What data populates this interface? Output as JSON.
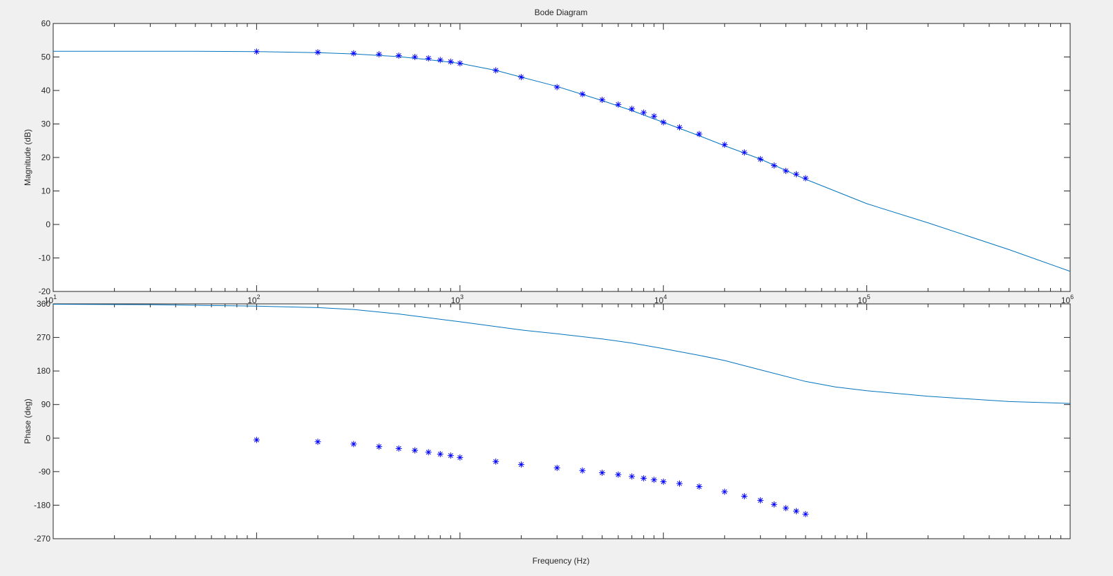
{
  "figure": {
    "title": "Bode Diagram",
    "xlabel": "Frequency  (Hz)",
    "background": "#f0f0f0",
    "axes_color": "#262626",
    "line_color": "#0072bd",
    "marker_color": "#0000ff",
    "marker_icon": "asterisk-marker-icon"
  },
  "chart_data": [
    {
      "type": "line",
      "title": "Bode Diagram",
      "xlabel": "",
      "ylabel": "Magnitude (dB)",
      "xscale": "log",
      "xlim": [
        10,
        1000000
      ],
      "ylim": [
        -20,
        60
      ],
      "yticks": [
        -20,
        -10,
        0,
        10,
        20,
        30,
        40,
        50,
        60
      ],
      "xticks": [
        10,
        100,
        1000,
        10000,
        100000,
        1000000
      ],
      "xtick_labels": [
        {
          "base": "10",
          "exp": "1"
        },
        {
          "base": "10",
          "exp": "2"
        },
        {
          "base": "10",
          "exp": "3"
        },
        {
          "base": "10",
          "exp": "4"
        },
        {
          "base": "10",
          "exp": "5"
        },
        {
          "base": "10",
          "exp": "6"
        }
      ],
      "grid": false,
      "series": [
        {
          "style": "line",
          "x": [
            10,
            50,
            100,
            200,
            300,
            500,
            700,
            1000,
            1500,
            2000,
            3000,
            5000,
            7000,
            10000,
            15000,
            20000,
            30000,
            50000,
            100000,
            200000,
            500000,
            1000000
          ],
          "y": [
            51.7,
            51.7,
            51.6,
            51.3,
            50.9,
            50.1,
            49.2,
            48.1,
            46.0,
            44.0,
            41.2,
            37.0,
            34.0,
            30.5,
            26.5,
            23.5,
            19.5,
            13.5,
            6.2,
            0.5,
            -7.5,
            -14.0
          ]
        },
        {
          "style": "markers",
          "x": [
            100,
            200,
            300,
            400,
            500,
            600,
            700,
            800,
            900,
            1000,
            1500,
            2000,
            3000,
            4000,
            5000,
            6000,
            7000,
            8000,
            9000,
            10000,
            12000,
            15000,
            20000,
            25000,
            30000,
            35000,
            40000,
            45000,
            50000
          ],
          "y": [
            51.6,
            51.4,
            51.1,
            50.8,
            50.4,
            50.0,
            49.6,
            49.1,
            48.6,
            48.1,
            46.0,
            44.0,
            41.0,
            38.9,
            37.2,
            35.8,
            34.5,
            33.4,
            32.3,
            30.5,
            29.0,
            27.0,
            23.8,
            21.5,
            19.5,
            17.6,
            16.0,
            15.0,
            13.8
          ]
        }
      ]
    },
    {
      "type": "line",
      "xlabel": "Frequency  (Hz)",
      "ylabel": "Phase (deg)",
      "xscale": "log",
      "xlim": [
        10,
        1000000
      ],
      "ylim": [
        -270,
        360
      ],
      "yticks": [
        -270,
        -180,
        -90,
        0,
        90,
        180,
        270,
        360
      ],
      "xticks": [
        10,
        100,
        1000,
        10000,
        100000,
        1000000
      ],
      "grid": false,
      "series": [
        {
          "style": "line",
          "x": [
            10,
            30,
            100,
            200,
            300,
            500,
            1000,
            2000,
            3000,
            5000,
            7000,
            10000,
            15000,
            20000,
            30000,
            50000,
            70000,
            100000,
            200000,
            500000,
            1000000
          ],
          "y": [
            359,
            358,
            354,
            350,
            345,
            333,
            312,
            290,
            280,
            266,
            255,
            240,
            222,
            208,
            183,
            152,
            137,
            127,
            112,
            98,
            93
          ]
        },
        {
          "style": "markers",
          "x": [
            100,
            200,
            300,
            400,
            500,
            600,
            700,
            800,
            900,
            1000,
            1500,
            2000,
            3000,
            4000,
            5000,
            6000,
            7000,
            8000,
            9000,
            10000,
            12000,
            15000,
            20000,
            25000,
            30000,
            35000,
            40000,
            45000,
            50000
          ],
          "y": [
            -5,
            -10,
            -16,
            -23,
            -28,
            -33,
            -38,
            -43,
            -47,
            -52,
            -63,
            -71,
            -80,
            -87,
            -93,
            -98,
            -103,
            -108,
            -112,
            -117,
            -122,
            -130,
            -144,
            -156,
            -167,
            -178,
            -188,
            -196,
            -204
          ]
        }
      ]
    }
  ]
}
